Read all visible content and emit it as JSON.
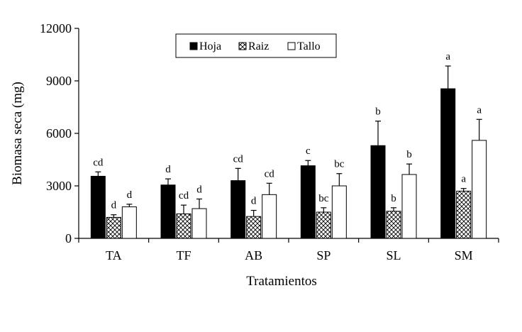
{
  "chart_data": {
    "type": "bar",
    "title": "",
    "xlabel": "Tratamientos",
    "ylabel": "Biomasa seca (mg)",
    "ylim": [
      0,
      12000
    ],
    "yticks": [
      "0",
      "3000",
      "6000",
      "9000",
      "12000"
    ],
    "grid": false,
    "legend_position": "top",
    "categories": [
      "TA",
      "TF",
      "AB",
      "SP",
      "SL",
      "SM"
    ],
    "series": [
      {
        "name": "Hoja",
        "pattern": "solid-black",
        "values": [
          3550,
          3050,
          3300,
          4150,
          5300,
          8550
        ],
        "errors": [
          250,
          350,
          700,
          300,
          1400,
          1300
        ],
        "labels": [
          "cd",
          "d",
          "cd",
          "c",
          "b",
          "a"
        ]
      },
      {
        "name": "Raiz",
        "pattern": "crosshatch",
        "values": [
          1200,
          1400,
          1250,
          1500,
          1550,
          2700
        ],
        "errors": [
          150,
          500,
          350,
          250,
          200,
          150
        ],
        "labels": [
          "d",
          "cd",
          "d",
          "bc",
          "b",
          "a"
        ]
      },
      {
        "name": "Tallo",
        "pattern": "white",
        "values": [
          1800,
          1700,
          2500,
          3000,
          3650,
          5600
        ],
        "errors": [
          150,
          550,
          650,
          700,
          600,
          1200
        ],
        "labels": [
          "d",
          "d",
          "cd",
          "bc",
          "b",
          "a"
        ]
      }
    ]
  }
}
